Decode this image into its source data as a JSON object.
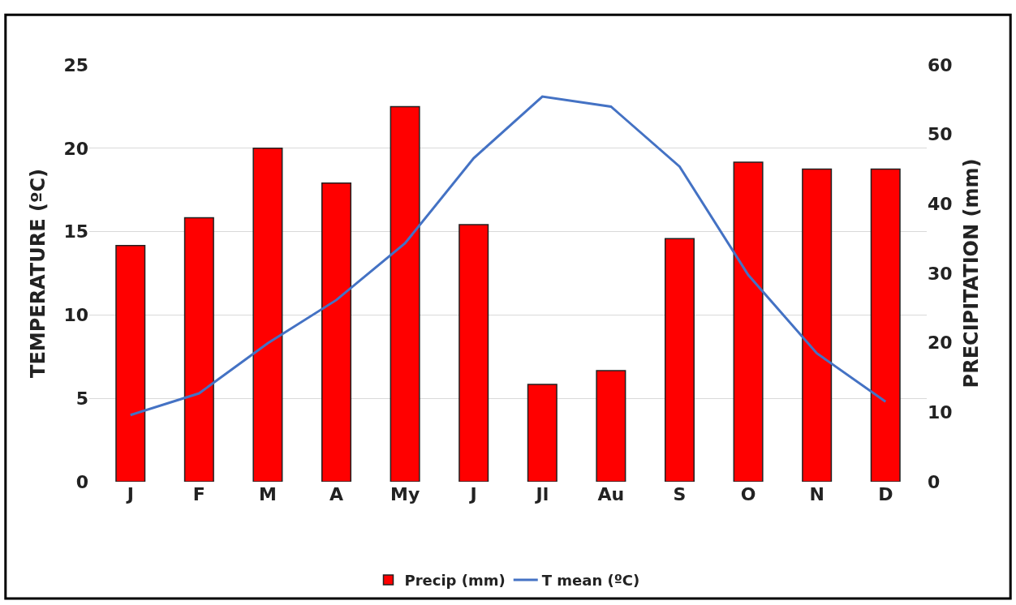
{
  "chart_data": {
    "type": "bar",
    "categories": [
      "J",
      "F",
      "M",
      "A",
      "My",
      "J",
      "Jl",
      "Au",
      "S",
      "O",
      "N",
      "D"
    ],
    "ylabel": "TEMPERATURE (ºC)",
    "y2label": "PRECIPITATION (mm)",
    "series": [
      {
        "name": "Precip (mm)",
        "axis": "y2",
        "color": "#ff0000",
        "values": [
          34,
          38,
          48,
          43,
          54,
          37,
          14,
          16,
          35,
          46,
          45,
          45
        ]
      },
      {
        "name": "T mean (ºC)",
        "type": "line",
        "axis": "y",
        "color": "#4472c4",
        "values": [
          4.0,
          5.3,
          8.3,
          10.9,
          14.3,
          19.4,
          23.1,
          22.5,
          18.9,
          12.4,
          7.7,
          4.8
        ]
      }
    ],
    "ylim": [
      0,
      25
    ],
    "yticks": [
      0,
      5,
      10,
      15,
      20,
      25
    ],
    "y2lim": [
      0,
      60
    ],
    "y2ticks": [
      0,
      10,
      20,
      30,
      40,
      50,
      60
    ],
    "grid": "y",
    "legend": "bottom",
    "marker": "none",
    "line_style": "solid"
  }
}
